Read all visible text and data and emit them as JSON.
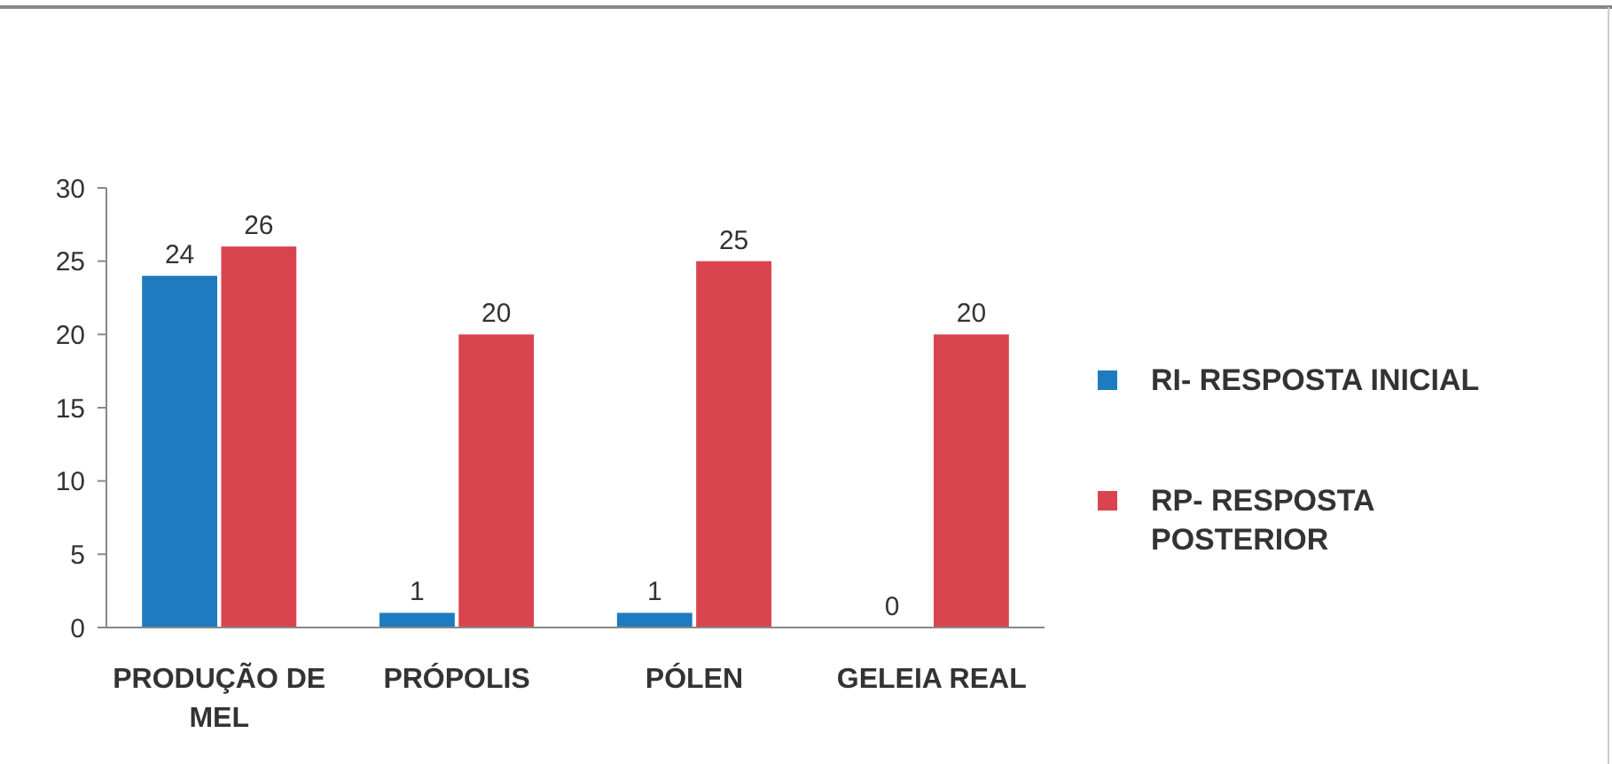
{
  "chart_data": {
    "type": "bar",
    "categories": [
      "PRODUÇÃO DE MEL",
      "PRÓPOLIS",
      "PÓLEN",
      "GELEIA REAL"
    ],
    "series": [
      {
        "name": "RI- RESPOSTA INICIAL",
        "color": "#1f7bbf",
        "values": [
          24,
          1,
          1,
          0
        ]
      },
      {
        "name": "RP- RESPOSTA POSTERIOR",
        "color": "#d9444f",
        "values": [
          26,
          20,
          25,
          20
        ]
      }
    ],
    "ylim": [
      0,
      30
    ],
    "yticks": [
      0,
      5,
      10,
      15,
      20,
      25,
      30
    ],
    "legend": "right",
    "data_labels": true
  }
}
